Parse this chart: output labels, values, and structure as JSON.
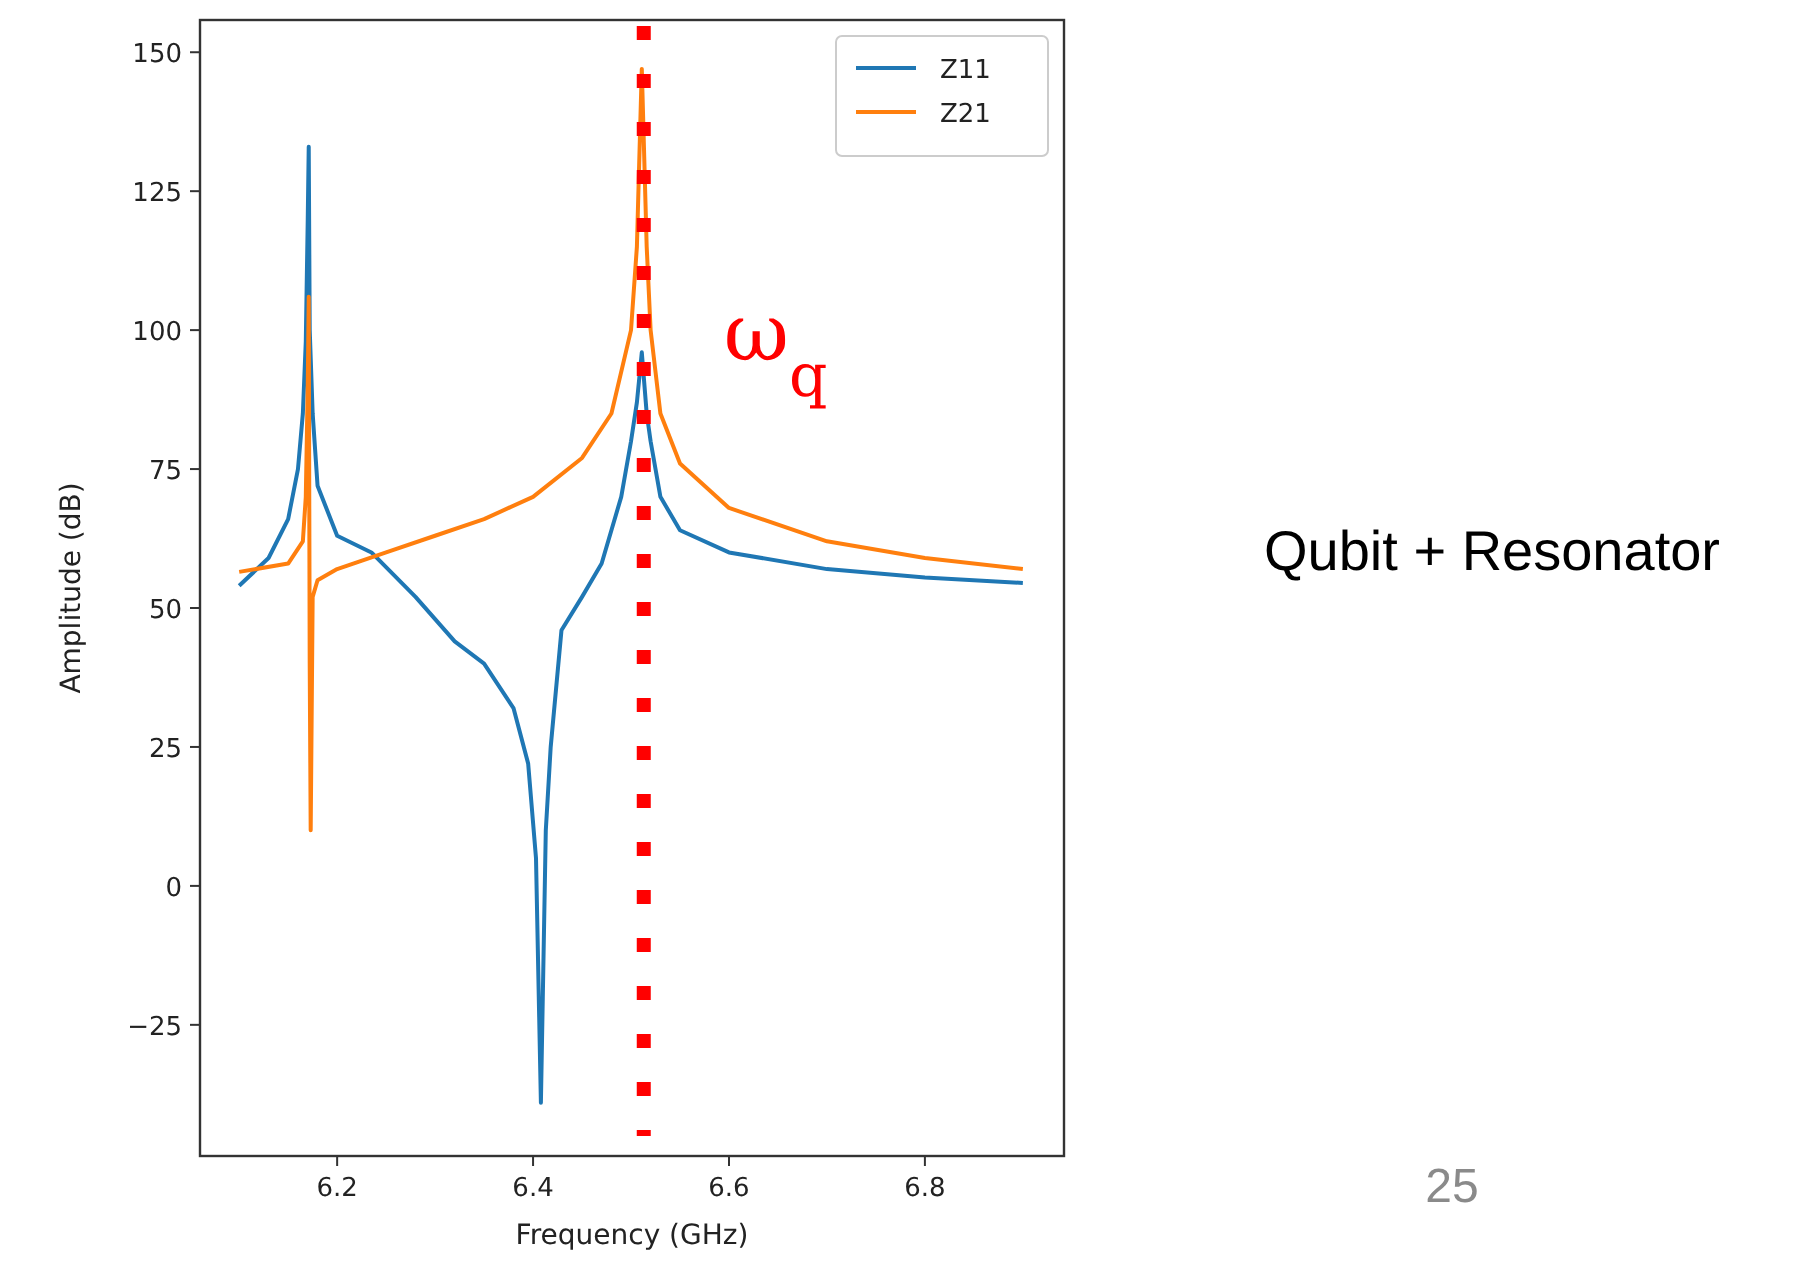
{
  "chart_data": {
    "type": "line",
    "xlabel": "Frequency (GHz)",
    "ylabel": "Amplitude (dB)",
    "xlim": [
      6.06,
      6.942
    ],
    "ylim": [
      -48.6,
      155.8
    ],
    "xticks": [
      6.2,
      6.4,
      6.6,
      6.8
    ],
    "yticks": [
      -25,
      0,
      25,
      50,
      75,
      100,
      125,
      150
    ],
    "series": [
      {
        "name": "Z11",
        "color": "#1f77b4",
        "x": [
          6.1,
          6.13,
          6.15,
          6.16,
          6.165,
          6.168,
          6.17,
          6.171,
          6.172,
          6.175,
          6.18,
          6.2,
          6.235,
          6.28,
          6.32,
          6.35,
          6.38,
          6.395,
          6.403,
          6.408,
          6.413,
          6.418,
          6.429,
          6.45,
          6.47,
          6.49,
          6.5,
          6.506,
          6.511,
          6.516,
          6.52,
          6.53,
          6.55,
          6.6,
          6.7,
          6.8,
          6.9
        ],
        "values": [
          54,
          59,
          66,
          75,
          85,
          98,
          120,
          133,
          100,
          85,
          72,
          63,
          60,
          52,
          44,
          40,
          32,
          22,
          5,
          -39,
          10,
          25,
          46,
          52,
          58,
          70,
          80,
          87,
          96,
          85,
          80,
          70,
          64,
          60,
          57,
          55.5,
          54.5
        ]
      },
      {
        "name": "Z21",
        "color": "#ff7f0e",
        "x": [
          6.1,
          6.15,
          6.165,
          6.168,
          6.17,
          6.171,
          6.172,
          6.173,
          6.175,
          6.18,
          6.2,
          6.25,
          6.3,
          6.35,
          6.4,
          6.45,
          6.48,
          6.5,
          6.506,
          6.511,
          6.516,
          6.52,
          6.53,
          6.55,
          6.6,
          6.7,
          6.8,
          6.9
        ],
        "values": [
          56.5,
          58,
          62,
          70,
          90,
          106,
          40,
          10,
          52,
          55,
          57,
          60,
          63,
          66,
          70,
          77,
          85,
          100,
          115,
          147,
          115,
          100,
          85,
          76,
          68,
          62,
          59,
          57
        ]
      }
    ],
    "ref_lines": [
      {
        "axis": "x",
        "value": 6.513,
        "label": "ω$_{q}$",
        "color": "#ff0000",
        "line_style": "dotted"
      }
    ],
    "annotations": [
      "Qubit + Resonator",
      "25"
    ],
    "legend": "top right",
    "grid": false
  }
}
